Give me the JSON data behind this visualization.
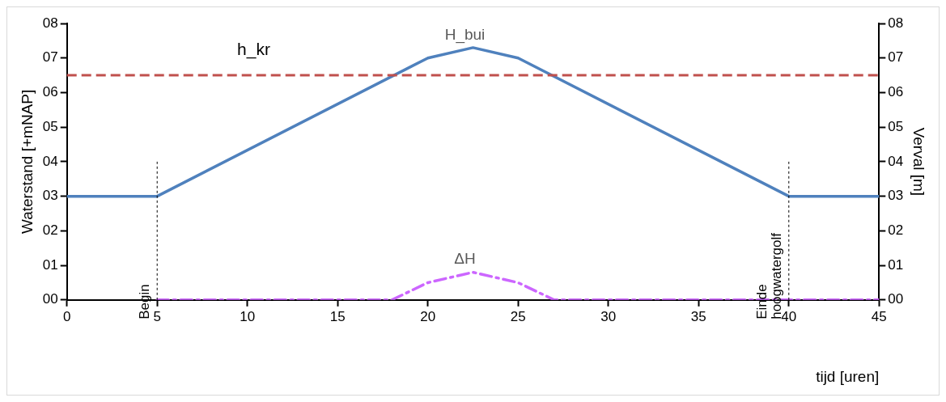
{
  "chart_data": {
    "type": "line",
    "xlabel": "tijd [uren]",
    "ylabel": "Waterstand [+mNAP]",
    "y2label": "Verval [m]",
    "xlim": [
      0,
      45
    ],
    "xticks": [
      0,
      5,
      10,
      15,
      20,
      25,
      30,
      35,
      40,
      45
    ],
    "ylim": [
      0,
      8
    ],
    "yticks": [
      {
        "value": 0,
        "label": "00"
      },
      {
        "value": 1,
        "label": "01"
      },
      {
        "value": 2,
        "label": "02"
      },
      {
        "value": 3,
        "label": "03"
      },
      {
        "value": 4,
        "label": "04"
      },
      {
        "value": 5,
        "label": "05"
      },
      {
        "value": 6,
        "label": "06"
      },
      {
        "value": 7,
        "label": "07"
      },
      {
        "value": 8,
        "label": "08"
      }
    ],
    "y2lim": [
      0,
      8
    ],
    "y2ticks": [
      {
        "value": 0,
        "label": "00"
      },
      {
        "value": 1,
        "label": "01"
      },
      {
        "value": 2,
        "label": "02"
      },
      {
        "value": 3,
        "label": "03"
      },
      {
        "value": 4,
        "label": "04"
      },
      {
        "value": 5,
        "label": "05"
      },
      {
        "value": 6,
        "label": "06"
      },
      {
        "value": 7,
        "label": "07"
      },
      {
        "value": 8,
        "label": "08"
      }
    ],
    "series": [
      {
        "name": "H_bui",
        "color": "#4f81bd",
        "line_style": "solid",
        "x": [
          0,
          5,
          20,
          22.5,
          25,
          40,
          45
        ],
        "values": [
          3,
          3,
          7,
          7.3,
          7,
          3,
          3
        ]
      },
      {
        "name": "ΔH",
        "color": "#cc66ff",
        "line_style": "dashed",
        "x": [
          5,
          18,
          20,
          22.5,
          25,
          27,
          45
        ],
        "values": [
          0,
          0,
          0.5,
          0.8,
          0.5,
          0,
          0
        ]
      }
    ],
    "ref_lines": [
      {
        "axis": "y",
        "value": 6.5,
        "label": "h_kr",
        "color": "#c0504d",
        "line_style": "dashed"
      },
      {
        "axis": "x",
        "value": 5,
        "label": "Begin",
        "color": "#000000",
        "line_style": "dotted"
      },
      {
        "axis": "x",
        "value": 40,
        "label": "Einde hoogwatergolf",
        "color": "#000000",
        "line_style": "dotted"
      }
    ],
    "grid": false,
    "legend": false,
    "marker": "none"
  }
}
